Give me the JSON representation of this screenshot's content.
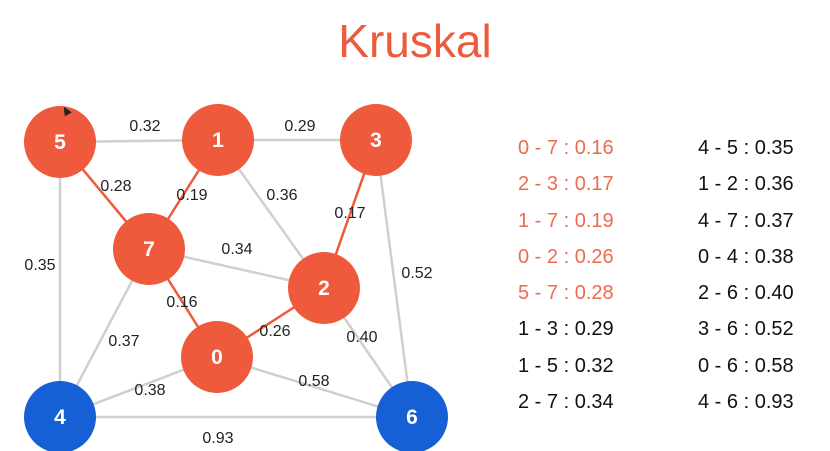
{
  "title": "Kruskal",
  "colors": {
    "mst": "#ee5a3b",
    "unvisited": "#1560d4",
    "edge": "#cfcfcf"
  },
  "nodes": [
    {
      "id": "5",
      "state": "mst"
    },
    {
      "id": "1",
      "state": "mst"
    },
    {
      "id": "3",
      "state": "mst"
    },
    {
      "id": "7",
      "state": "mst"
    },
    {
      "id": "2",
      "state": "mst"
    },
    {
      "id": "0",
      "state": "mst"
    },
    {
      "id": "4",
      "state": "unvisited"
    },
    {
      "id": "6",
      "state": "unvisited"
    }
  ],
  "edges": [
    {
      "from": "5",
      "to": "1",
      "weight": "0.32",
      "in_mst": false
    },
    {
      "from": "1",
      "to": "3",
      "weight": "0.29",
      "in_mst": false
    },
    {
      "from": "5",
      "to": "7",
      "weight": "0.28",
      "in_mst": true
    },
    {
      "from": "1",
      "to": "7",
      "weight": "0.19",
      "in_mst": true
    },
    {
      "from": "1",
      "to": "2",
      "weight": "0.36",
      "in_mst": false
    },
    {
      "from": "3",
      "to": "2",
      "weight": "0.17",
      "in_mst": true
    },
    {
      "from": "5",
      "to": "4",
      "weight": "0.35",
      "in_mst": false
    },
    {
      "from": "7",
      "to": "2",
      "weight": "0.34",
      "in_mst": false
    },
    {
      "from": "3",
      "to": "6",
      "weight": "0.52",
      "in_mst": false
    },
    {
      "from": "7",
      "to": "0",
      "weight": "0.16",
      "in_mst": true
    },
    {
      "from": "0",
      "to": "2",
      "weight": "0.26",
      "in_mst": true
    },
    {
      "from": "7",
      "to": "4",
      "weight": "0.37",
      "in_mst": false
    },
    {
      "from": "2",
      "to": "6",
      "weight": "0.40",
      "in_mst": false
    },
    {
      "from": "0",
      "to": "4",
      "weight": "0.38",
      "in_mst": false
    },
    {
      "from": "0",
      "to": "6",
      "weight": "0.58",
      "in_mst": false
    },
    {
      "from": "4",
      "to": "6",
      "weight": "0.93",
      "in_mst": false
    }
  ],
  "sorted_edges_left": [
    {
      "text": "0 - 7 : 0.16",
      "selected": true
    },
    {
      "text": "2 - 3 : 0.17",
      "selected": true
    },
    {
      "text": "1 - 7 : 0.19",
      "selected": true
    },
    {
      "text": "0 - 2 : 0.26",
      "selected": true
    },
    {
      "text": "5 - 7 : 0.28",
      "selected": true
    },
    {
      "text": "1 - 3 : 0.29",
      "selected": false
    },
    {
      "text": "1 - 5 : 0.32",
      "selected": false
    },
    {
      "text": "2 - 7 : 0.34",
      "selected": false
    }
  ],
  "sorted_edges_right": [
    {
      "text": "4 - 5 : 0.35",
      "selected": false
    },
    {
      "text": "1 - 2 : 0.36",
      "selected": false
    },
    {
      "text": "4 - 7 : 0.37",
      "selected": false
    },
    {
      "text": "0 - 4 : 0.38",
      "selected": false
    },
    {
      "text": "2 - 6 : 0.40",
      "selected": false
    },
    {
      "text": "3 - 6 : 0.52",
      "selected": false
    },
    {
      "text": "0 - 6 : 0.58",
      "selected": false
    },
    {
      "text": "4 - 6 : 0.93",
      "selected": false
    }
  ]
}
